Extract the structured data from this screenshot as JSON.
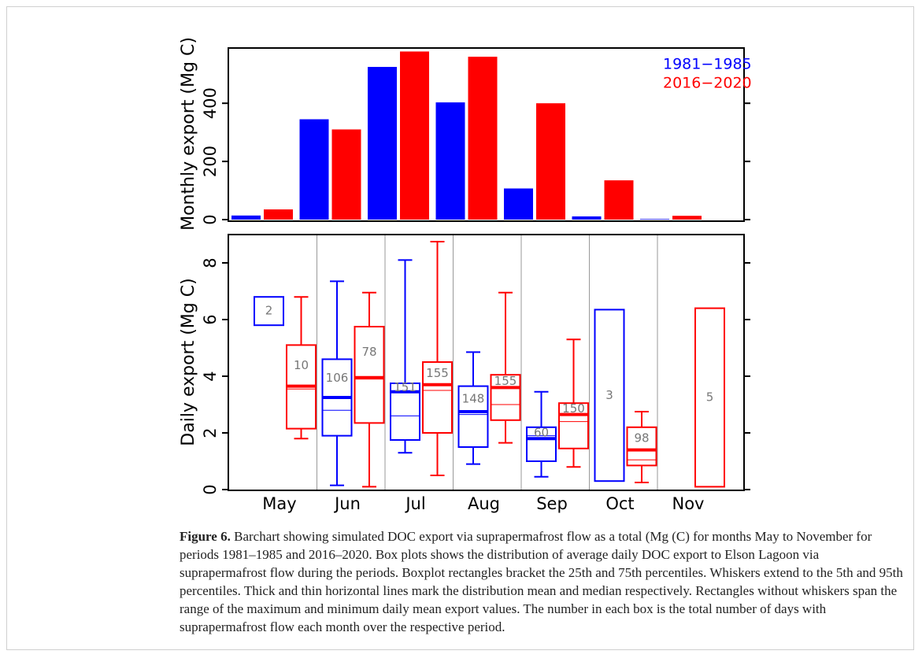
{
  "chart_data": [
    {
      "type": "bar",
      "ylabel": "Monthly export (Mg C)",
      "ylim": [
        0,
        590
      ],
      "yticks": [
        0,
        200,
        400
      ],
      "legend": "top-right",
      "series": [
        {
          "name": "1981−1985",
          "color": "#0000ff",
          "values": [
            14,
            345,
            525,
            403,
            107,
            11,
            2
          ]
        },
        {
          "name": "2016−2020",
          "color": "#ff0000",
          "values": [
            35,
            310,
            578,
            560,
            400,
            135,
            13
          ]
        }
      ]
    },
    {
      "type": "box",
      "ylabel": "Daily export (Mg C)",
      "ylim": [
        0,
        9
      ],
      "yticks": [
        0,
        2,
        4,
        6,
        8
      ],
      "dividers": true,
      "categories": [
        "May",
        "Jun",
        "Jul",
        "Aug",
        "Sep",
        "Oct",
        "Nov"
      ],
      "series": [
        {
          "color": "#0000ff",
          "boxes": [
            {
              "min": 5.8,
              "max": 6.8,
              "count": 2
            },
            {
              "whisker_low": 0.15,
              "q1": 1.9,
              "median": 2.8,
              "mean": 3.25,
              "q3": 4.6,
              "whisker_high": 7.35,
              "count": 106
            },
            {
              "whisker_low": 1.3,
              "q1": 1.75,
              "median": 2.6,
              "mean": 3.45,
              "q3": 3.75,
              "whisker_high": 8.1,
              "count": 151
            },
            {
              "whisker_low": 0.9,
              "q1": 1.5,
              "median": 2.65,
              "mean": 2.75,
              "q3": 3.65,
              "whisker_high": 4.85,
              "count": 148
            },
            {
              "whisker_low": 0.45,
              "q1": 1.0,
              "median": 1.9,
              "mean": 1.8,
              "q3": 2.2,
              "whisker_high": 3.45,
              "count": 60
            },
            {
              "min": 0.3,
              "max": 6.35,
              "count": 3
            },
            null
          ]
        },
        {
          "color": "#ff0000",
          "boxes": [
            {
              "whisker_low": 1.8,
              "q1": 2.15,
              "median": 3.55,
              "mean": 3.65,
              "q3": 5.1,
              "whisker_high": 6.8,
              "count": 10
            },
            {
              "whisker_low": 0.1,
              "q1": 2.35,
              "median": 3.9,
              "mean": 3.95,
              "q3": 5.75,
              "whisker_high": 6.95,
              "count": 78
            },
            {
              "whisker_low": 0.5,
              "q1": 2.0,
              "median": 3.5,
              "mean": 3.7,
              "q3": 4.5,
              "whisker_high": 8.75,
              "count": 155
            },
            {
              "whisker_low": 1.65,
              "q1": 2.45,
              "median": 3.0,
              "mean": 3.6,
              "q3": 4.05,
              "whisker_high": 6.95,
              "count": 155
            },
            {
              "whisker_low": 0.8,
              "q1": 1.45,
              "median": 2.4,
              "mean": 2.65,
              "q3": 3.05,
              "whisker_high": 5.3,
              "count": 150
            },
            {
              "whisker_low": 0.25,
              "q1": 0.85,
              "median": 1.05,
              "mean": 1.4,
              "q3": 2.2,
              "whisker_high": 2.75,
              "count": 98
            },
            {
              "min": 0.1,
              "max": 6.4,
              "count": 5
            }
          ]
        }
      ]
    }
  ],
  "caption": {
    "label": "Figure 6.",
    "text": "Barchart showing simulated DOC export via suprapermafrost flow as a total (Mg (C) for months May to November for periods 1981–1985 and 2016–2020. Box plots shows the distribution of average daily DOC export to Elson Lagoon via suprapermafrost flow during the periods. Boxplot rectangles bracket the 25th and 75th percentiles. Whiskers extend to the 5th and 95th percentiles. Thick and thin horizontal lines mark the distribution mean and median respectively. Rectangles without whiskers span the range of the maximum and minimum daily mean export values. The number in each box is the total number of days with suprapermafrost flow each month over the respective period."
  }
}
